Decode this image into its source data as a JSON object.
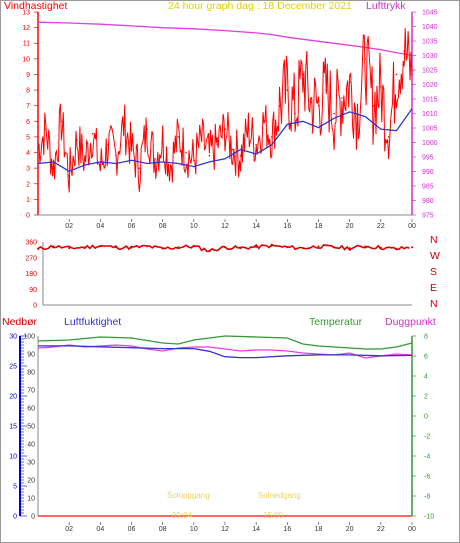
{
  "header": {
    "title": "24 hour graph dag : 18 December 2021",
    "left_label": "Vindhastighet",
    "right_label": "Lufttrykk"
  },
  "direction_labels": [
    "N",
    "W",
    "S",
    "E",
    "N"
  ],
  "bottom": {
    "label_precip": "Nedbør",
    "label_humidity": "Luftfuktighet",
    "label_temp": "Temperatur",
    "label_dew": "Duggpunkt",
    "sunrise_label": "Soloppgang",
    "sunrise_time": "09:04",
    "sunset_label": "Solnedgang",
    "sunset_time": "15:00"
  },
  "colors": {
    "wind": "#ff0000",
    "avg_wind": "#3333cc",
    "pressure": "#e040e0",
    "direction": "#dd0000",
    "humidity": "#3333cc",
    "temperature": "#339933",
    "dewpoint": "#e040e0",
    "precip": "#ff3333",
    "title": "#e0d000",
    "precip_axis": "#0000cc",
    "temp_axis": "#339933",
    "pressure_axis": "#cc33cc"
  },
  "chart_data": [
    {
      "type": "line",
      "name": "wind-pressure",
      "x_ticks": [
        "02",
        "04",
        "06",
        "08",
        "10",
        "12",
        "14",
        "16",
        "18",
        "20",
        "22",
        "00"
      ],
      "ylim_left": [
        0,
        13
      ],
      "y_ticks_left": [
        0,
        1,
        2,
        3,
        4,
        5,
        6,
        7,
        8,
        9,
        10,
        11,
        12,
        13
      ],
      "ylim_right": [
        975,
        1045
      ],
      "y_ticks_right": [
        975,
        980,
        985,
        990,
        995,
        1000,
        1005,
        1010,
        1015,
        1020,
        1025,
        1030,
        1035,
        1040,
        1045
      ],
      "series": [
        {
          "name": "Vindhastighet",
          "x": [
            0,
            0.5,
            1,
            1.5,
            2,
            2.5,
            3,
            3.5,
            4,
            4.5,
            5,
            5.5,
            6,
            6.5,
            7,
            7.5,
            8,
            8.5,
            9,
            9.5,
            10,
            10.5,
            11,
            11.5,
            12,
            12.5,
            13,
            13.5,
            14,
            14.5,
            15,
            15.5,
            16,
            16.5,
            17,
            17.5,
            18,
            18.5,
            19,
            19.5,
            20,
            20.5,
            21,
            21.5,
            22,
            22.5,
            23,
            23.5,
            24
          ],
          "values": [
            4.2,
            5.5,
            3.0,
            6.0,
            2.5,
            4.8,
            3.5,
            5.2,
            3.0,
            4.5,
            3.8,
            5.8,
            4.2,
            3.0,
            5.5,
            3.6,
            4.8,
            3.2,
            5.0,
            4.0,
            3.5,
            4.8,
            3.8,
            4.5,
            5.5,
            4.2,
            3.8,
            5.5,
            4.5,
            6.0,
            5.0,
            7.0,
            8.0,
            6.5,
            9.0,
            7.2,
            7.0,
            8.0,
            6.5,
            7.5,
            8.5,
            6.5,
            10.0,
            7.0,
            8.2,
            5.0,
            9.0,
            10.5,
            9.0
          ]
        },
        {
          "name": "Middelvind",
          "x": [
            0,
            1,
            2,
            3,
            4,
            5,
            6,
            7,
            8,
            9,
            10,
            11,
            12,
            13,
            14,
            15,
            16,
            17,
            18,
            19,
            20,
            21,
            22,
            23,
            24
          ],
          "values": [
            3.3,
            3.4,
            2.8,
            3.2,
            3.4,
            3.3,
            3.5,
            3.3,
            3.4,
            3.3,
            3.1,
            3.4,
            3.6,
            4.2,
            3.9,
            4.5,
            5.8,
            6.0,
            5.6,
            6.2,
            6.6,
            6.3,
            5.5,
            5.4,
            6.8
          ]
        },
        {
          "name": "Lufttrykk",
          "x": [
            0,
            2,
            4,
            6,
            8,
            10,
            12,
            14,
            15,
            16,
            17,
            18,
            19,
            20,
            21,
            22,
            23,
            24
          ],
          "values": [
            1041.5,
            1041.2,
            1040.8,
            1040.2,
            1039.6,
            1039.2,
            1038.6,
            1037.8,
            1037.2,
            1036.3,
            1035.6,
            1034.9,
            1034.2,
            1033.5,
            1032.8,
            1032.0,
            1031.0,
            1030.0
          ]
        }
      ]
    },
    {
      "type": "scatter",
      "name": "wind-direction",
      "x_ticks": [
        "02",
        "04",
        "06",
        "08",
        "10",
        "12",
        "14",
        "16",
        "18",
        "20",
        "22",
        "00"
      ],
      "ylim": [
        0,
        360
      ],
      "y_ticks": [
        0,
        90,
        180,
        270,
        360
      ],
      "series": [
        {
          "name": "Vindretning",
          "x": [
            0,
            1,
            2,
            3,
            4,
            5,
            6,
            7,
            8,
            9,
            10,
            11,
            12,
            13,
            14,
            15,
            16,
            17,
            18,
            19,
            20,
            21,
            22,
            23,
            24
          ],
          "values": [
            320,
            335,
            325,
            330,
            338,
            330,
            328,
            335,
            322,
            330,
            335,
            310,
            330,
            325,
            332,
            338,
            330,
            325,
            335,
            330,
            325,
            335,
            328,
            320,
            330
          ]
        }
      ]
    },
    {
      "type": "line",
      "name": "humidity-temperature",
      "x_ticks": [
        "02",
        "04",
        "06",
        "08",
        "10",
        "12",
        "14",
        "16",
        "18",
        "20",
        "22",
        "00"
      ],
      "ylim_humidity": [
        0,
        100
      ],
      "y_ticks_humidity": [
        0,
        10,
        20,
        30,
        40,
        50,
        60,
        70,
        80,
        90,
        100
      ],
      "ylim_precip": [
        0,
        30
      ],
      "y_ticks_precip": [
        0,
        5,
        10,
        15,
        20,
        25,
        30
      ],
      "ylim_temp": [
        -10,
        8
      ],
      "y_ticks_temp": [
        -10,
        -8,
        -6,
        -4,
        -2,
        0,
        2,
        4,
        6,
        8
      ],
      "series": [
        {
          "name": "Luftfuktighet",
          "x": [
            0,
            2,
            4,
            6,
            8,
            10,
            11,
            12,
            13,
            14,
            16,
            18,
            20,
            22,
            24
          ],
          "values": [
            94.5,
            94.5,
            94.0,
            93.5,
            93.0,
            93.0,
            91.5,
            88.5,
            88.0,
            88.0,
            89.0,
            89.5,
            89.5,
            89.0,
            89.2
          ]
        },
        {
          "name": "Temperatur",
          "x": [
            0,
            2,
            4,
            6,
            8,
            9,
            10,
            12,
            14,
            16,
            17,
            18,
            20,
            21,
            22,
            23,
            24
          ],
          "values": [
            7.5,
            7.6,
            7.9,
            7.8,
            7.3,
            7.2,
            7.6,
            8.0,
            7.9,
            7.8,
            7.2,
            7.0,
            6.8,
            6.7,
            6.7,
            6.9,
            7.3
          ]
        },
        {
          "name": "Duggpunkt",
          "x": [
            0,
            1,
            2,
            3,
            4,
            5,
            6,
            7,
            8,
            9,
            10,
            11,
            12,
            13,
            14,
            15,
            16,
            17,
            18,
            19,
            20,
            21,
            22,
            23,
            24
          ],
          "values": [
            6.8,
            6.9,
            7.1,
            6.9,
            7.0,
            7.1,
            7.0,
            6.7,
            6.5,
            6.8,
            6.9,
            6.9,
            6.7,
            6.5,
            6.6,
            6.6,
            6.5,
            6.3,
            6.2,
            6.1,
            6.3,
            5.8,
            6.0,
            6.2,
            6.1
          ]
        },
        {
          "name": "Nedbør",
          "x": [
            0,
            24
          ],
          "values": [
            0,
            0
          ]
        }
      ]
    }
  ]
}
